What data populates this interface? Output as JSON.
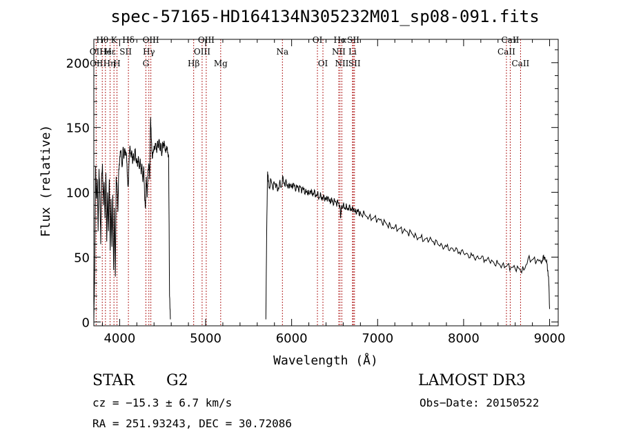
{
  "chart_data": {
    "type": "line",
    "title": "spec-57165-HD164134N305232M01_sp08-091.fits",
    "xlabel": "Wavelength (Å)",
    "ylabel": "Flux (relative)",
    "xlim": [
      3700,
      9100
    ],
    "ylim": [
      -3,
      218
    ],
    "x_ticks": [
      4000,
      5000,
      6000,
      7000,
      8000,
      9000
    ],
    "y_ticks": [
      0,
      50,
      100,
      150,
      200
    ],
    "series": [
      {
        "name": "spectrum",
        "segments": [
          {
            "x": [
              3700,
              3710,
              3720,
              3730,
              3740,
              3750,
              3760,
              3770,
              3780,
              3790,
              3800,
              3810,
              3820,
              3830,
              3840,
              3850,
              3860,
              3870,
              3880,
              3890,
              3900,
              3910,
              3920,
              3930,
              3940,
              3950,
              3960,
              3970,
              3980,
              3990,
              4000,
              4010,
              4020,
              4030,
              4040,
              4050,
              4060,
              4070,
              4080,
              4090,
              4100,
              4110,
              4120,
              4130,
              4140,
              4150,
              4160,
              4170,
              4180,
              4190,
              4200,
              4210,
              4220,
              4230,
              4240,
              4250,
              4260,
              4270,
              4280,
              4290,
              4300,
              4310,
              4320,
              4330,
              4340,
              4350,
              4360,
              4370,
              4380,
              4390,
              4400,
              4410,
              4420,
              4430,
              4440,
              4450,
              4460,
              4470,
              4480,
              4490,
              4500,
              4510,
              4520,
              4530,
              4540,
              4550,
              4560,
              4570,
              4580,
              4590
            ],
            "y": [
              0,
              38,
              120,
              95,
              110,
              70,
              118,
              100,
              60,
              112,
              122,
              90,
              108,
              80,
              115,
              62,
              100,
              70,
              110,
              55,
              95,
              58,
              98,
              40,
              88,
              35,
              112,
              105,
              85,
              118,
              125,
              132,
              128,
              120,
              135,
              126,
              134,
              130,
              128,
              112,
              105,
              124,
              136,
              128,
              132,
              122,
              130,
              125,
              133,
              124,
              126,
              120,
              127,
              118,
              126,
              114,
              122,
              108,
              120,
              98,
              88,
              112,
              96,
              118,
              122,
              110,
              158,
              140,
              126,
              130,
              136,
              133,
              138,
              131,
              139,
              134,
              141,
              133,
              137,
              128,
              139,
              135,
              138,
              132,
              134,
              133,
              131,
              128,
              20,
              2
            ]
          },
          {
            "x": [
              5700,
              5710,
              5720,
              5730,
              5740,
              5760,
              5780,
              5800,
              5820,
              5840,
              5860,
              5880,
              5900,
              5920,
              5940,
              5960,
              5980,
              6000,
              6020,
              6040,
              6060,
              6080,
              6100,
              6120,
              6140,
              6160,
              6180,
              6200,
              6220,
              6240,
              6260,
              6280,
              6300,
              6320,
              6340,
              6360,
              6380,
              6400,
              6420,
              6440,
              6460,
              6480,
              6500,
              6520,
              6540,
              6560,
              6570,
              6580,
              6600,
              6620,
              6640,
              6660,
              6680,
              6700,
              6720,
              6740,
              6760,
              6780,
              6800,
              6850,
              6900,
              6950,
              7000,
              7050,
              7100,
              7150,
              7200,
              7250,
              7300,
              7350,
              7400,
              7450,
              7500,
              7550,
              7600,
              7650,
              7700,
              7750,
              7800,
              7850,
              7900,
              7950,
              8000,
              8050,
              8100,
              8150,
              8200,
              8250,
              8300,
              8350,
              8400,
              8450,
              8500,
              8550,
              8600,
              8650,
              8700,
              8750,
              8800,
              8850,
              8900,
              8920,
              8940,
              8960,
              8970,
              8980,
              8990,
              9000
            ],
            "y": [
              2,
              70,
              116,
              108,
              104,
              110,
              103,
              107,
              105,
              101,
              108,
              104,
              112,
              105,
              108,
              103,
              106,
              104,
              107,
              103,
              105,
              102,
              104,
              101,
              103,
              100,
              101,
              99,
              101,
              98,
              100,
              97,
              99,
              96,
              98,
              95,
              96,
              94,
              96,
              93,
              95,
              92,
              94,
              91,
              92,
              90,
              80,
              89,
              90,
              88,
              89,
              87,
              88,
              86,
              87,
              85,
              86,
              85,
              84,
              83,
              81,
              80,
              79,
              77,
              76,
              74,
              73,
              72,
              70,
              69,
              68,
              66,
              65,
              64,
              63,
              62,
              60,
              59,
              58,
              57,
              55,
              54,
              53,
              52,
              51,
              50,
              49,
              48,
              47,
              46,
              45,
              44,
              43,
              42,
              41,
              41,
              40,
              49,
              48,
              47,
              46,
              48,
              50,
              47,
              45,
              40,
              30,
              10
            ]
          }
        ]
      }
    ],
    "line_labels": [
      {
        "label": "Hθ",
        "x": 3798,
        "row": 0
      },
      {
        "label": "OII",
        "x": 3727,
        "row": 1
      },
      {
        "label": "OII",
        "x": 3730,
        "row": 2
      },
      {
        "label": "He",
        "x": 3836,
        "row": 1
      },
      {
        "label": "Hη",
        "x": 3880,
        "row": 2
      },
      {
        "label": "K",
        "x": 3934,
        "row": 0
      },
      {
        "label": "Hε",
        "x": 3889,
        "row": 1
      },
      {
        "label": "H",
        "x": 3969,
        "row": 2
      },
      {
        "label": "Hδ",
        "x": 4102,
        "row": 0
      },
      {
        "label": "SII",
        "x": 4070,
        "row": 1
      },
      {
        "label": "OIII",
        "x": 4363,
        "row": 0
      },
      {
        "label": "Hγ",
        "x": 4340,
        "row": 1
      },
      {
        "label": "G",
        "x": 4305,
        "row": 2
      },
      {
        "label": "OIII",
        "x": 5007,
        "row": 0
      },
      {
        "label": "OIII",
        "x": 4959,
        "row": 1
      },
      {
        "label": "Hβ",
        "x": 4861,
        "row": 2
      },
      {
        "label": "Mg",
        "x": 5175,
        "row": 2
      },
      {
        "label": "Na",
        "x": 5893,
        "row": 1
      },
      {
        "label": "OI",
        "x": 6300,
        "row": 0
      },
      {
        "label": "OI",
        "x": 6364,
        "row": 2
      },
      {
        "label": "Hα",
        "x": 6563,
        "row": 0
      },
      {
        "label": "SII",
        "x": 6717,
        "row": 0
      },
      {
        "label": "NII",
        "x": 6548,
        "row": 1
      },
      {
        "label": "Li",
        "x": 6708,
        "row": 1
      },
      {
        "label": "NII",
        "x": 6584,
        "row": 2
      },
      {
        "label": "SII",
        "x": 6731,
        "row": 2
      },
      {
        "label": "CaII",
        "x": 8542,
        "row": 0
      },
      {
        "label": "CaII",
        "x": 8498,
        "row": 1
      },
      {
        "label": "CaII",
        "x": 8662,
        "row": 2
      }
    ],
    "line_positions": [
      3727,
      3798,
      3835,
      3889,
      3934,
      3969,
      4102,
      4305,
      4340,
      4363,
      4861,
      4959,
      5007,
      5175,
      5893,
      6300,
      6364,
      6548,
      6563,
      6584,
      6708,
      6717,
      6731,
      8498,
      8542,
      8662
    ],
    "line_color": "#b22222",
    "curve_color": "#000000"
  },
  "info": {
    "object": "STAR",
    "subclass": "G2",
    "survey": "LAMOST DR3",
    "cz": "cz = −15.3 ± 6.7 km/s",
    "obs_date": "Obs−Date: 20150522",
    "coords": "RA = 251.93243, DEC =  30.72086"
  }
}
